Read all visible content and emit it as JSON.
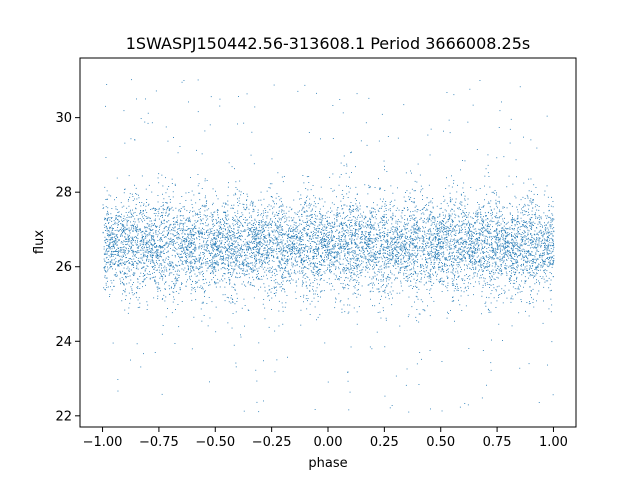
{
  "chart_data": {
    "type": "scatter",
    "title": "1SWASPJ150442.56-313608.1 Period 3666008.25s",
    "xlabel": "phase",
    "ylabel": "flux",
    "xlim": [
      -1.1,
      1.1
    ],
    "ylim": [
      21.7,
      31.6
    ],
    "x_ticks": [
      -1.0,
      -0.75,
      -0.5,
      -0.25,
      0.0,
      0.25,
      0.5,
      0.75,
      1.0
    ],
    "x_tick_labels": [
      "−1.00",
      "−0.75",
      "−0.50",
      "−0.25",
      "0.00",
      "0.25",
      "0.50",
      "0.75",
      "1.00"
    ],
    "y_ticks": [
      22,
      24,
      26,
      28,
      30
    ],
    "y_tick_labels": [
      "22",
      "24",
      "26",
      "28",
      "30"
    ],
    "grid": false,
    "legend": "none",
    "marker_color": "#1f77b4",
    "series": [
      {
        "points_summary": "dense phase-folded light curve, points from phase -1.0 to 1.0 (mirrored), flux mostly 25-28 centered near 26.6, scattered outliers 22-31",
        "x_range": [
          -1.0,
          1.0
        ],
        "y_core": [
          25.0,
          28.0
        ],
        "y_center": 26.6,
        "y_extent": [
          22.1,
          31.2
        ],
        "approx_count": 30000
      }
    ]
  }
}
